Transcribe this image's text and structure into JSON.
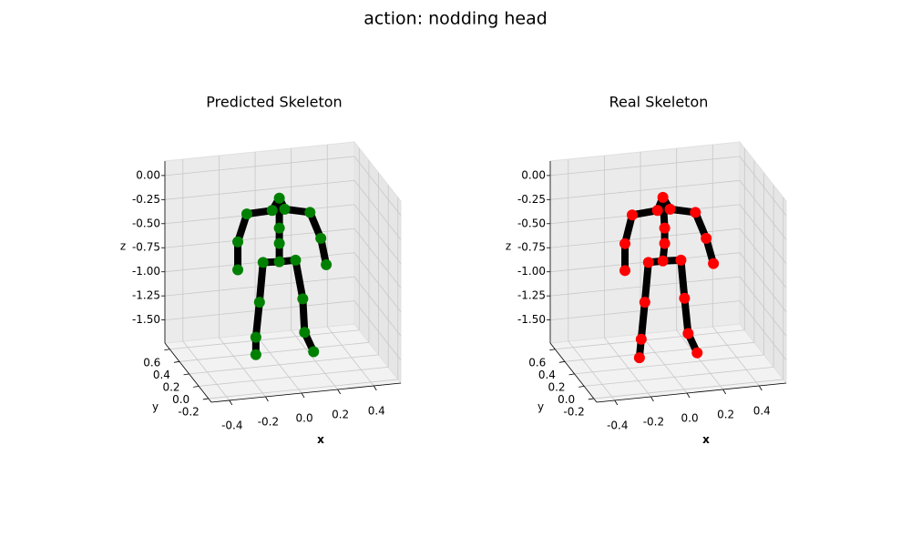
{
  "title": "action: nodding head",
  "chart_data": [
    {
      "type": "skeleton3d",
      "title": "Predicted Skeleton",
      "xlabel": "x",
      "ylabel": "y",
      "zlabel": "z",
      "color": "#008000",
      "line_color": "#000000",
      "grid": true,
      "x": [
        0.0,
        -0.04,
        0.03,
        -0.18,
        -0.23,
        -0.23,
        0.17,
        0.23,
        0.26,
        0.0,
        0.0,
        0.0,
        -0.09,
        -0.11,
        -0.13,
        -0.13,
        0.09,
        0.13,
        0.14,
        0.19
      ],
      "y": [
        0.2,
        0.2,
        0.2,
        0.2,
        0.2,
        0.2,
        0.2,
        0.2,
        0.2,
        0.2,
        0.2,
        0.2,
        0.2,
        0.2,
        0.2,
        0.2,
        0.2,
        0.2,
        0.2,
        0.2
      ],
      "z": [
        -0.01,
        -0.13,
        -0.13,
        -0.14,
        -0.42,
        -0.71,
        -0.19,
        -0.47,
        -0.75,
        -0.32,
        -0.48,
        -0.67,
        -0.66,
        -1.07,
        -1.43,
        -1.61,
        -0.67,
        -1.08,
        -1.43,
        -1.64
      ],
      "xlim": [
        -0.5,
        0.55
      ],
      "ylim": [
        -0.26,
        0.7
      ],
      "zlim": [
        -1.74,
        0.15
      ],
      "xticks": [
        -0.4,
        -0.2,
        {
          "value": 0,
          "label": "0.0"
        },
        0.2,
        0.4
      ],
      "yticks": [
        -0.2,
        {
          "value": 0,
          "label": "0.0"
        },
        0.2,
        0.4,
        0.6
      ],
      "zticks": [
        {
          "value": 0,
          "label": "0.00"
        },
        -0.25,
        {
          "value": -0.5,
          "label": "-0.50"
        },
        -0.75,
        {
          "value": -1,
          "label": "-1.00"
        },
        -1.25,
        {
          "value": -1.5,
          "label": "-1.50"
        }
      ]
    },
    {
      "type": "skeleton3d",
      "title": "Real Skeleton",
      "xlabel": "x",
      "ylabel": "y",
      "zlabel": "z",
      "color": "#ff0000",
      "line_color": "#000000",
      "grid": true,
      "x": [
        -0.01,
        -0.04,
        0.03,
        -0.18,
        -0.22,
        -0.22,
        0.17,
        0.23,
        0.27,
        0.0,
        0.0,
        -0.01,
        -0.09,
        -0.11,
        -0.13,
        -0.14,
        0.09,
        0.11,
        0.13,
        0.18
      ],
      "y": [
        0.2,
        0.2,
        0.2,
        0.2,
        0.2,
        0.2,
        0.2,
        0.2,
        0.2,
        0.2,
        0.2,
        0.2,
        0.2,
        0.2,
        0.2,
        0.2,
        0.2,
        0.2,
        0.2,
        0.2
      ],
      "z": [
        0.0,
        -0.13,
        -0.13,
        -0.15,
        -0.44,
        -0.72,
        -0.19,
        -0.47,
        -0.74,
        -0.32,
        -0.48,
        -0.66,
        -0.66,
        -1.07,
        -1.45,
        -1.64,
        -0.67,
        -1.07,
        -1.44,
        -1.65
      ],
      "xlim": [
        -0.5,
        0.55
      ],
      "ylim": [
        -0.26,
        0.7
      ],
      "zlim": [
        -1.74,
        0.15
      ],
      "xticks": [
        -0.4,
        -0.2,
        {
          "value": 0,
          "label": "0.0"
        },
        0.2,
        0.4
      ],
      "yticks": [
        -0.2,
        {
          "value": 0,
          "label": "0.0"
        },
        0.2,
        0.4,
        0.6
      ],
      "zticks": [
        {
          "value": 0,
          "label": "0.00"
        },
        -0.25,
        {
          "value": -0.5,
          "label": "-0.50"
        },
        -0.75,
        {
          "value": -1,
          "label": "-1.00"
        },
        -1.25,
        {
          "value": -1.5,
          "label": "-1.50"
        }
      ]
    }
  ]
}
